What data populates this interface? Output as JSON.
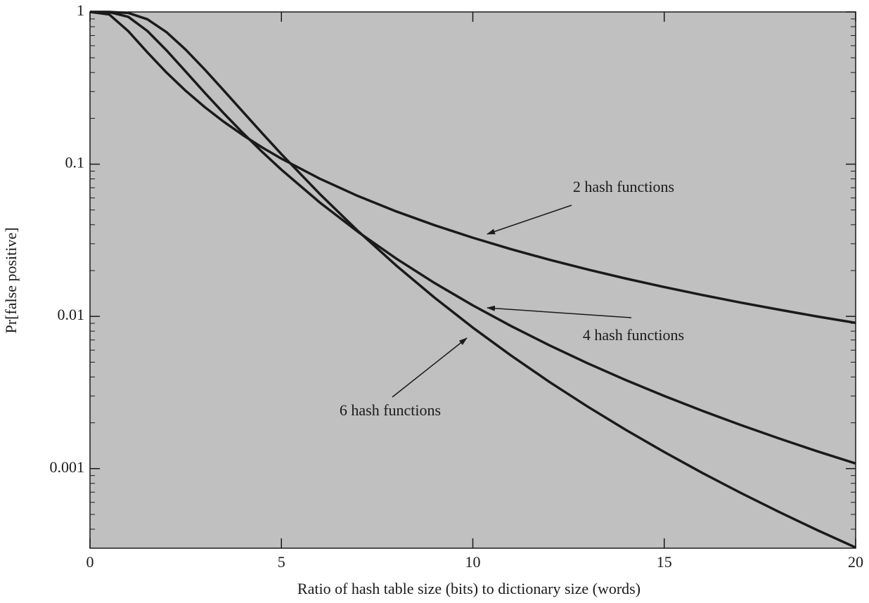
{
  "chart_data": {
    "type": "line",
    "x_label": "Ratio of hash table size (bits) to dictionary size (words)",
    "y_label": "Pr[false positive]",
    "x": [
      0,
      0.5,
      1,
      1.5,
      2,
      2.5,
      3,
      3.5,
      4,
      4.5,
      5,
      6,
      7,
      8,
      9,
      10,
      11,
      12,
      13,
      14,
      15,
      16,
      17,
      18,
      19,
      20
    ],
    "series": [
      {
        "name": "2 hash functions",
        "color": "#1a1a1a",
        "values": [
          1,
          0.9637,
          0.7477,
          0.5423,
          0.3996,
          0.3033,
          0.2368,
          0.1895,
          0.1548,
          0.1287,
          0.1087,
          0.08035,
          0.06175,
          0.04893,
          0.03972,
          0.03287,
          0.02762,
          0.02356,
          0.02033,
          0.01772,
          0.01558,
          0.01381,
          0.01232,
          0.01107,
          0.00998,
          0.00906
        ]
      },
      {
        "name": "4 hash functions",
        "color": "#1a1a1a",
        "values": [
          1,
          0.9987,
          0.9287,
          0.7497,
          0.559,
          0.4057,
          0.2941,
          0.2152,
          0.1597,
          0.1203,
          0.09197,
          0.05607,
          0.03591,
          0.02397,
          0.01657,
          0.01181,
          0.008642,
          0.006456,
          0.004917,
          0.003813,
          0.003003,
          0.002394,
          0.001934,
          0.001578,
          0.001298,
          0.00108
        ]
      },
      {
        "name": "6 hash functions",
        "color": "#1a1a1a",
        "values": [
          1,
          0.99996,
          0.9852,
          0.895,
          0.736,
          0.5652,
          0.418,
          0.3038,
          0.2199,
          0.1595,
          0.1164,
          0.06381,
          0.03637,
          0.02157,
          0.01328,
          0.008437,
          0.005528,
          0.003711,
          0.002554,
          0.001795,
          0.001285,
          0.000935,
          0.000692,
          0.000519,
          0.000394,
          0.000303
        ]
      }
    ],
    "xlim": [
      0,
      20
    ],
    "xticks": [
      0,
      5,
      10,
      15,
      20
    ],
    "ylim": [
      0.0003,
      1
    ],
    "yticks": [
      0.001,
      0.01,
      0.1,
      1
    ],
    "y_log_scale": true,
    "grid": false,
    "plot_background": "#c0c0c0"
  }
}
